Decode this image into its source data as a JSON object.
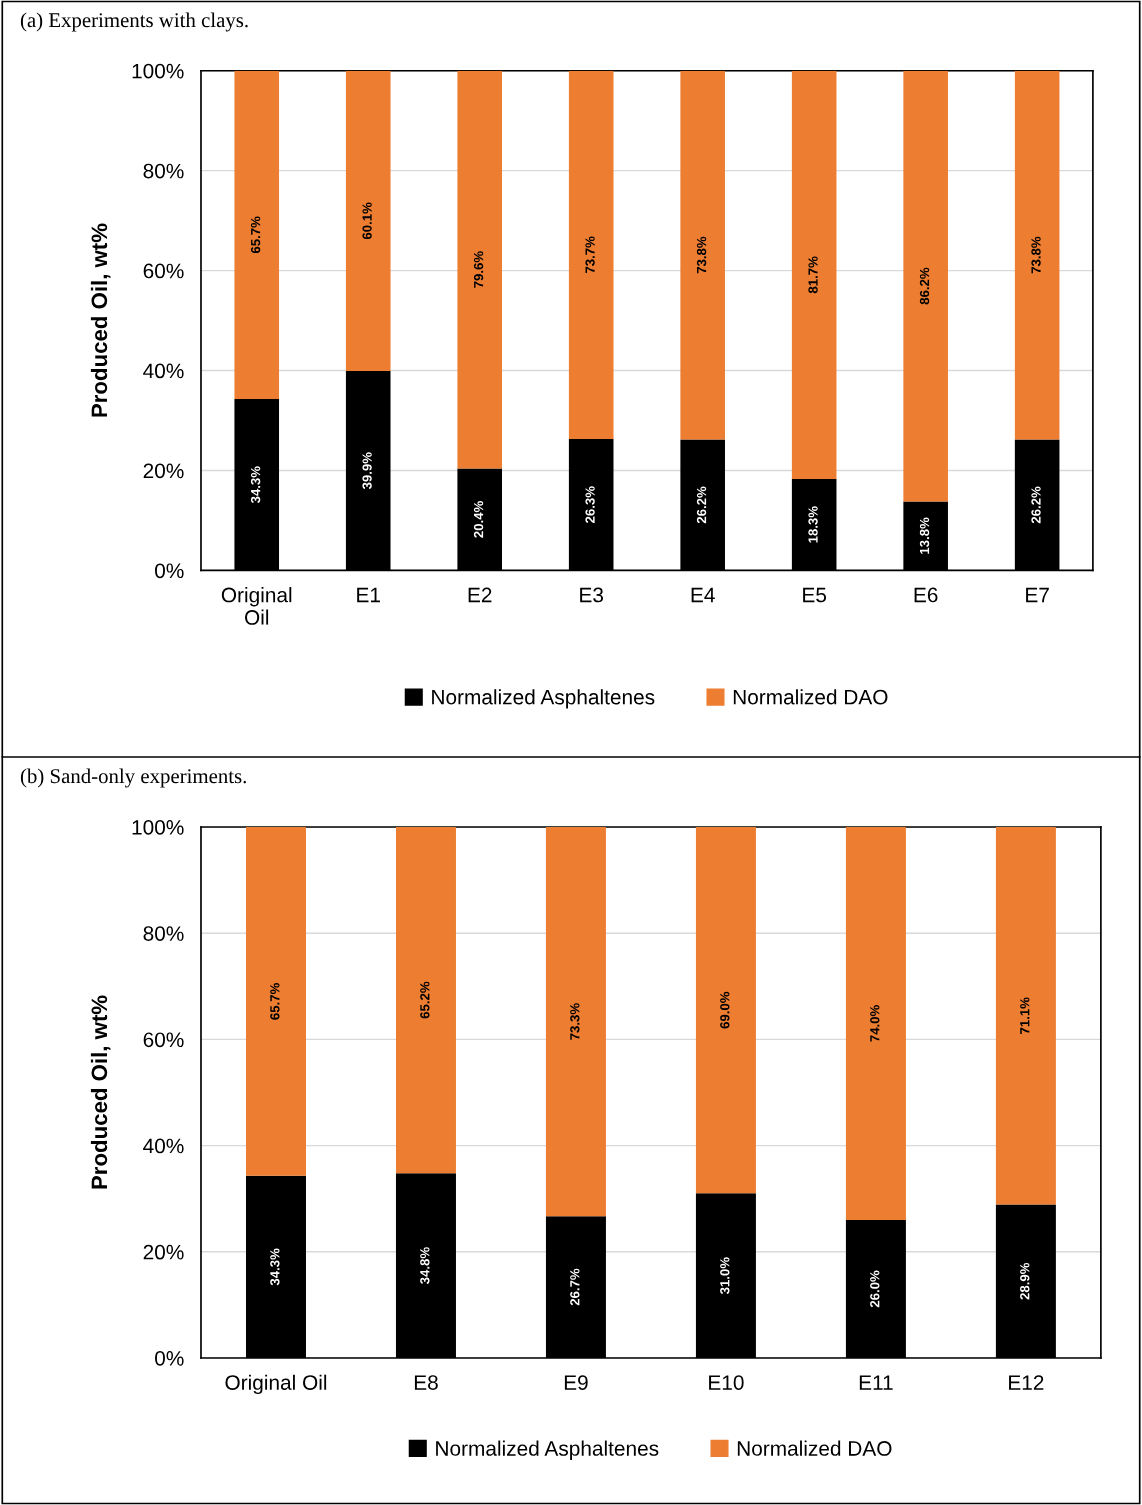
{
  "chart_data": [
    {
      "type": "bar",
      "title": "(a) Experiments with clays.",
      "ylabel": "Produced Oil, wt%",
      "stacked": true,
      "grid": "y",
      "legend": "bottom",
      "categories": [
        "Original Oil",
        "E1",
        "E2",
        "E3",
        "E4",
        "E5",
        "E6",
        "E7"
      ],
      "ylim": [
        0,
        100
      ],
      "yticks": [
        {
          "value": 0,
          "label": "0%"
        },
        {
          "value": 20,
          "label": "20%"
        },
        {
          "value": 40,
          "label": "40%"
        },
        {
          "value": 60,
          "label": "60%"
        },
        {
          "value": 80,
          "label": "80%"
        },
        {
          "value": 100,
          "label": "100%"
        }
      ],
      "series": [
        {
          "name": "Normalized Asphaltenes",
          "color": "#000000",
          "values": [
            34.3,
            39.9,
            20.4,
            26.3,
            26.2,
            18.3,
            13.8,
            26.2
          ],
          "value_labels": [
            "34.3%",
            "39.9%",
            "20.4%",
            "26.3%",
            "26.2%",
            "18.3%",
            "13.8%",
            "26.2%"
          ]
        },
        {
          "name": "Normalized DAO",
          "color": "#ed7d31",
          "values": [
            65.7,
            60.1,
            79.6,
            73.7,
            73.8,
            81.7,
            86.2,
            73.8
          ],
          "value_labels": [
            "65.7%",
            "60.1%",
            "79.6%",
            "73.7%",
            "73.8%",
            "81.7%",
            "86.2%",
            "73.8%"
          ]
        }
      ]
    },
    {
      "type": "bar",
      "title": "(b) Sand-only experiments.",
      "ylabel": "Produced Oil, wt%",
      "stacked": true,
      "grid": "y",
      "legend": "bottom",
      "categories": [
        "Original Oil",
        "E8",
        "E9",
        "E10",
        "E11",
        "E12"
      ],
      "ylim": [
        0,
        100
      ],
      "yticks": [
        {
          "value": 0,
          "label": "0%"
        },
        {
          "value": 20,
          "label": "20%"
        },
        {
          "value": 40,
          "label": "40%"
        },
        {
          "value": 60,
          "label": "60%"
        },
        {
          "value": 80,
          "label": "80%"
        },
        {
          "value": 100,
          "label": "100%"
        }
      ],
      "series": [
        {
          "name": "Normalized Asphaltenes",
          "color": "#000000",
          "values": [
            34.3,
            34.8,
            26.7,
            31.0,
            26.0,
            28.9
          ],
          "value_labels": [
            "34.3%",
            "34.8%",
            "26.7%",
            "31.0%",
            "26.0%",
            "28.9%"
          ]
        },
        {
          "name": "Normalized DAO",
          "color": "#ed7d31",
          "values": [
            65.7,
            65.2,
            73.3,
            69.0,
            74.0,
            71.1
          ],
          "value_labels": [
            "65.7%",
            "65.2%",
            "73.3%",
            "69.0%",
            "74.0%",
            "71.1%"
          ]
        }
      ]
    }
  ]
}
